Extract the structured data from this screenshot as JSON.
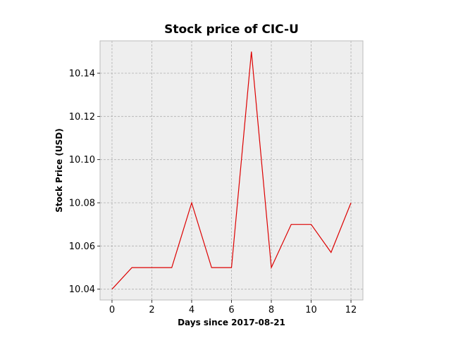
{
  "chart_data": {
    "type": "line",
    "title": "Stock price of CIC-U",
    "xlabel": "Days since 2017-08-21",
    "ylabel": "Stock Price (USD)",
    "x": [
      0,
      1,
      2,
      3,
      4,
      5,
      6,
      7,
      8,
      9,
      10,
      11,
      12
    ],
    "series": [
      {
        "values": [
          10.04,
          10.05,
          10.05,
          10.05,
          10.08,
          10.05,
          10.05,
          10.15,
          10.05,
          10.07,
          10.07,
          10.057,
          10.08
        ],
        "color": "#dd0000"
      }
    ],
    "xlim": [
      -0.6,
      12.6
    ],
    "ylim": [
      10.035,
      10.155
    ],
    "xticks": [
      0,
      2,
      4,
      6,
      8,
      10,
      12
    ],
    "xtick_labels": [
      "0",
      "2",
      "4",
      "6",
      "8",
      "10",
      "12"
    ],
    "yticks": [
      10.04,
      10.06,
      10.08,
      10.1,
      10.12,
      10.14
    ],
    "ytick_labels": [
      "10.04",
      "10.06",
      "10.08",
      "10.10",
      "10.12",
      "10.14"
    ],
    "grid": true,
    "colors": {
      "plot_background": "#eeeeee",
      "grid": "#b0b0b0",
      "frame": "#bcbcbc",
      "line": "#dd0000"
    }
  }
}
